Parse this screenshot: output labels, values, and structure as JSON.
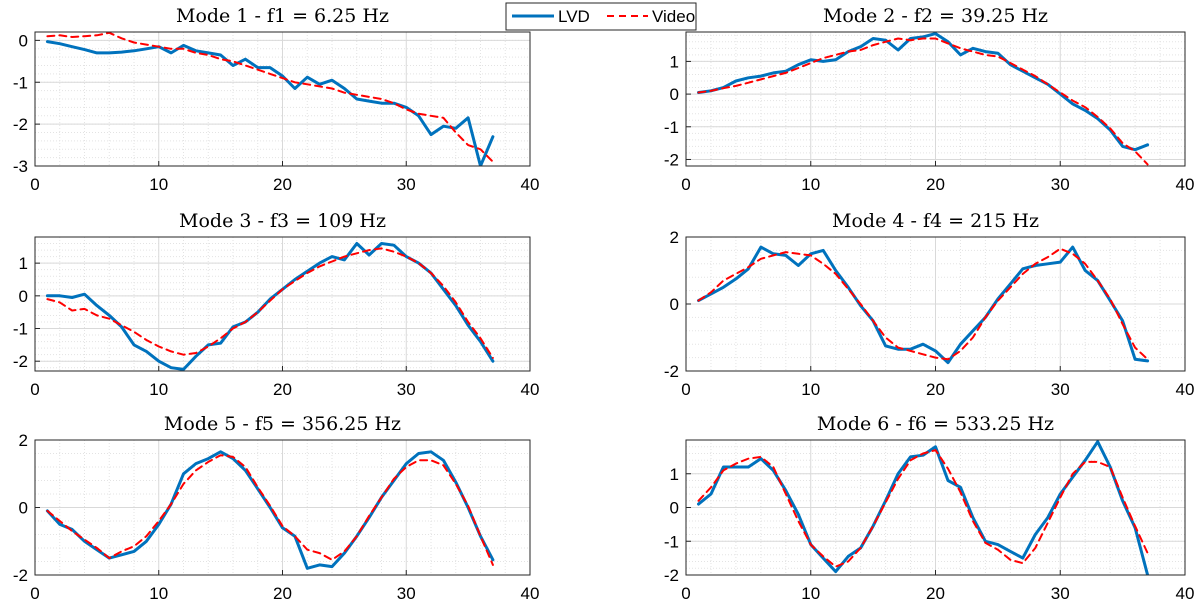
{
  "legend": {
    "entries": [
      {
        "label": "LVD",
        "color": "#0072BD",
        "style": "solid"
      },
      {
        "label": "Video",
        "color": "#FF0000",
        "style": "dashed"
      }
    ]
  },
  "chart_data": [
    {
      "type": "line",
      "title": "Mode 1 - f1 = 6.25 Hz",
      "xlim": [
        0,
        40
      ],
      "ylim": [
        -3,
        0.2
      ],
      "xticks": [
        0,
        10,
        20,
        30,
        40
      ],
      "yticks": [
        -3,
        -2,
        -1,
        0
      ],
      "grid": true,
      "x": [
        1,
        2,
        3,
        4,
        5,
        6,
        7,
        8,
        9,
        10,
        11,
        12,
        13,
        14,
        15,
        16,
        17,
        18,
        19,
        20,
        21,
        22,
        23,
        24,
        25,
        26,
        27,
        28,
        29,
        30,
        31,
        32,
        33,
        34,
        35,
        36,
        37
      ],
      "series": [
        {
          "name": "LVD",
          "values": [
            -0.03,
            -0.08,
            -0.15,
            -0.22,
            -0.3,
            -0.3,
            -0.28,
            -0.25,
            -0.2,
            -0.15,
            -0.3,
            -0.12,
            -0.25,
            -0.3,
            -0.35,
            -0.6,
            -0.45,
            -0.65,
            -0.65,
            -0.85,
            -1.15,
            -0.88,
            -1.05,
            -0.95,
            -1.15,
            -1.4,
            -1.45,
            -1.5,
            -1.5,
            -1.6,
            -1.8,
            -2.25,
            -2.05,
            -2.1,
            -1.85,
            -3.0,
            -2.3
          ]
        },
        {
          "name": "Video",
          "values": [
            0.1,
            0.12,
            0.08,
            0.1,
            0.12,
            0.18,
            0.05,
            -0.05,
            -0.1,
            -0.15,
            -0.2,
            -0.2,
            -0.3,
            -0.35,
            -0.45,
            -0.5,
            -0.6,
            -0.7,
            -0.8,
            -0.9,
            -1.0,
            -1.05,
            -1.1,
            -1.15,
            -1.25,
            -1.3,
            -1.35,
            -1.4,
            -1.5,
            -1.65,
            -1.75,
            -1.8,
            -1.85,
            -2.2,
            -2.5,
            -2.6,
            -2.9
          ]
        }
      ]
    },
    {
      "type": "line",
      "title": "Mode 2 - f2 = 39.25 Hz",
      "xlim": [
        0,
        40
      ],
      "ylim": [
        -2.2,
        1.9
      ],
      "xticks": [
        0,
        10,
        20,
        30,
        40
      ],
      "yticks": [
        -2,
        -1,
        0,
        1
      ],
      "grid": true,
      "x": [
        1,
        2,
        3,
        4,
        5,
        6,
        7,
        8,
        9,
        10,
        11,
        12,
        13,
        14,
        15,
        16,
        17,
        18,
        19,
        20,
        21,
        22,
        23,
        24,
        25,
        26,
        27,
        28,
        29,
        30,
        31,
        32,
        33,
        34,
        35,
        36,
        37
      ],
      "series": [
        {
          "name": "LVD",
          "values": [
            0.05,
            0.1,
            0.2,
            0.4,
            0.5,
            0.55,
            0.65,
            0.7,
            0.9,
            1.05,
            1.0,
            1.05,
            1.3,
            1.45,
            1.7,
            1.65,
            1.35,
            1.7,
            1.75,
            1.85,
            1.6,
            1.2,
            1.4,
            1.3,
            1.25,
            0.9,
            0.7,
            0.5,
            0.3,
            0.0,
            -0.3,
            -0.5,
            -0.75,
            -1.1,
            -1.6,
            -1.7,
            -1.55
          ]
        },
        {
          "name": "Video",
          "values": [
            0.05,
            0.1,
            0.18,
            0.25,
            0.35,
            0.45,
            0.55,
            0.65,
            0.8,
            0.95,
            1.1,
            1.2,
            1.3,
            1.35,
            1.5,
            1.6,
            1.7,
            1.65,
            1.7,
            1.7,
            1.55,
            1.4,
            1.3,
            1.2,
            1.15,
            0.95,
            0.75,
            0.55,
            0.3,
            0.05,
            -0.2,
            -0.4,
            -0.7,
            -1.05,
            -1.5,
            -1.75,
            -2.15
          ]
        }
      ]
    },
    {
      "type": "line",
      "title": "Mode 3 - f3 = 109 Hz",
      "xlim": [
        0,
        40
      ],
      "ylim": [
        -2.3,
        1.8
      ],
      "xticks": [
        0,
        10,
        20,
        30,
        40
      ],
      "yticks": [
        -2,
        -1,
        0,
        1
      ],
      "grid": true,
      "x": [
        1,
        2,
        3,
        4,
        5,
        6,
        7,
        8,
        9,
        10,
        11,
        12,
        13,
        14,
        15,
        16,
        17,
        18,
        19,
        20,
        21,
        22,
        23,
        24,
        25,
        26,
        27,
        28,
        29,
        30,
        31,
        32,
        33,
        34,
        35,
        36,
        37
      ],
      "series": [
        {
          "name": "LVD",
          "values": [
            0.0,
            0.0,
            -0.05,
            0.05,
            -0.3,
            -0.6,
            -0.95,
            -1.5,
            -1.7,
            -2.0,
            -2.2,
            -2.25,
            -1.85,
            -1.5,
            -1.45,
            -0.95,
            -0.8,
            -0.5,
            -0.1,
            0.2,
            0.5,
            0.75,
            1.0,
            1.2,
            1.1,
            1.6,
            1.25,
            1.6,
            1.55,
            1.2,
            1.0,
            0.7,
            0.2,
            -0.3,
            -0.9,
            -1.4,
            -2.0
          ]
        },
        {
          "name": "Video",
          "values": [
            -0.1,
            -0.2,
            -0.45,
            -0.4,
            -0.6,
            -0.7,
            -0.9,
            -1.1,
            -1.35,
            -1.55,
            -1.7,
            -1.8,
            -1.75,
            -1.55,
            -1.3,
            -1.0,
            -0.8,
            -0.5,
            -0.15,
            0.2,
            0.45,
            0.7,
            0.9,
            1.05,
            1.2,
            1.3,
            1.4,
            1.45,
            1.35,
            1.2,
            1.0,
            0.7,
            0.3,
            -0.2,
            -0.8,
            -1.3,
            -1.9
          ]
        }
      ]
    },
    {
      "type": "line",
      "title": "Mode 4 - f4 = 215 Hz",
      "xlim": [
        0,
        40
      ],
      "ylim": [
        -2.0,
        2.0
      ],
      "xticks": [
        0,
        10,
        20,
        30,
        40
      ],
      "yticks": [
        -2,
        0,
        2
      ],
      "grid": true,
      "x": [
        1,
        2,
        3,
        4,
        5,
        6,
        7,
        8,
        9,
        10,
        11,
        12,
        13,
        14,
        15,
        16,
        17,
        18,
        19,
        20,
        21,
        22,
        23,
        24,
        25,
        26,
        27,
        28,
        29,
        30,
        31,
        32,
        33,
        34,
        35,
        36,
        37
      ],
      "series": [
        {
          "name": "LVD",
          "values": [
            0.1,
            0.3,
            0.5,
            0.75,
            1.05,
            1.7,
            1.5,
            1.45,
            1.15,
            1.5,
            1.6,
            1.0,
            0.5,
            -0.05,
            -0.5,
            -1.25,
            -1.35,
            -1.35,
            -1.2,
            -1.4,
            -1.75,
            -1.2,
            -0.8,
            -0.4,
            0.15,
            0.6,
            1.05,
            1.15,
            1.2,
            1.25,
            1.7,
            1.0,
            0.7,
            0.1,
            -0.5,
            -1.65,
            -1.7
          ]
        },
        {
          "name": "Video",
          "values": [
            0.1,
            0.35,
            0.7,
            0.9,
            1.1,
            1.35,
            1.45,
            1.55,
            1.5,
            1.45,
            1.2,
            0.9,
            0.45,
            0.0,
            -0.5,
            -1.0,
            -1.3,
            -1.4,
            -1.5,
            -1.6,
            -1.65,
            -1.4,
            -1.0,
            -0.4,
            0.1,
            0.5,
            0.9,
            1.2,
            1.4,
            1.65,
            1.5,
            1.2,
            0.7,
            0.15,
            -0.6,
            -1.3,
            -1.65
          ]
        }
      ]
    },
    {
      "type": "line",
      "title": "Mode 5 - f5 = 356.25 Hz",
      "xlim": [
        0,
        40
      ],
      "ylim": [
        -2.0,
        2.0
      ],
      "xticks": [
        0,
        10,
        20,
        30,
        40
      ],
      "yticks": [
        -2,
        0,
        2
      ],
      "grid": true,
      "x": [
        1,
        2,
        3,
        4,
        5,
        6,
        7,
        8,
        9,
        10,
        11,
        12,
        13,
        14,
        15,
        16,
        17,
        18,
        19,
        20,
        21,
        22,
        23,
        24,
        25,
        26,
        27,
        28,
        29,
        30,
        31,
        32,
        33,
        34,
        35,
        36,
        37
      ],
      "series": [
        {
          "name": "LVD",
          "values": [
            -0.1,
            -0.5,
            -0.65,
            -1.0,
            -1.25,
            -1.5,
            -1.4,
            -1.3,
            -1.0,
            -0.5,
            0.1,
            1.0,
            1.3,
            1.45,
            1.65,
            1.45,
            1.1,
            0.55,
            0.0,
            -0.6,
            -0.85,
            -1.8,
            -1.7,
            -1.75,
            -1.35,
            -0.85,
            -0.3,
            0.3,
            0.8,
            1.3,
            1.6,
            1.65,
            1.4,
            0.75,
            0.0,
            -0.85,
            -1.55
          ]
        },
        {
          "name": "Video",
          "values": [
            -0.1,
            -0.4,
            -0.7,
            -0.95,
            -1.2,
            -1.5,
            -1.3,
            -1.15,
            -0.85,
            -0.4,
            0.1,
            0.7,
            1.1,
            1.35,
            1.55,
            1.5,
            1.2,
            0.6,
            0.05,
            -0.55,
            -0.85,
            -1.25,
            -1.35,
            -1.55,
            -1.3,
            -0.85,
            -0.25,
            0.3,
            0.85,
            1.2,
            1.4,
            1.4,
            1.25,
            0.7,
            0.05,
            -0.85,
            -1.7
          ]
        }
      ]
    },
    {
      "type": "line",
      "title": "Mode 6 - f6 = 533.25 Hz",
      "xlim": [
        0,
        40
      ],
      "ylim": [
        -2.0,
        2.0
      ],
      "xticks": [
        0,
        10,
        20,
        30,
        40
      ],
      "yticks": [
        -2,
        -1,
        0,
        1
      ],
      "grid": true,
      "x": [
        1,
        2,
        3,
        4,
        5,
        6,
        7,
        8,
        9,
        10,
        11,
        12,
        13,
        14,
        15,
        16,
        17,
        18,
        19,
        20,
        21,
        22,
        23,
        24,
        25,
        26,
        27,
        28,
        29,
        30,
        31,
        32,
        33,
        34,
        35,
        36,
        37
      ],
      "series": [
        {
          "name": "LVD",
          "values": [
            0.1,
            0.4,
            1.2,
            1.2,
            1.2,
            1.45,
            1.1,
            0.5,
            -0.2,
            -1.1,
            -1.5,
            -1.9,
            -1.45,
            -1.2,
            -0.55,
            0.2,
            1.0,
            1.5,
            1.55,
            1.8,
            0.8,
            0.6,
            -0.3,
            -1.0,
            -1.1,
            -1.3,
            -1.5,
            -0.8,
            -0.3,
            0.4,
            0.9,
            1.4,
            1.95,
            1.2,
            0.2,
            -0.6,
            -2.0
          ]
        },
        {
          "name": "Video",
          "values": [
            0.2,
            0.6,
            1.1,
            1.3,
            1.45,
            1.5,
            1.2,
            0.4,
            -0.4,
            -1.1,
            -1.45,
            -1.75,
            -1.6,
            -1.2,
            -0.55,
            0.15,
            0.85,
            1.4,
            1.6,
            1.7,
            1.15,
            0.45,
            -0.4,
            -1.05,
            -1.25,
            -1.55,
            -1.65,
            -1.2,
            -0.45,
            0.3,
            1.0,
            1.35,
            1.35,
            1.2,
            0.3,
            -0.55,
            -1.35
          ]
        }
      ]
    }
  ]
}
